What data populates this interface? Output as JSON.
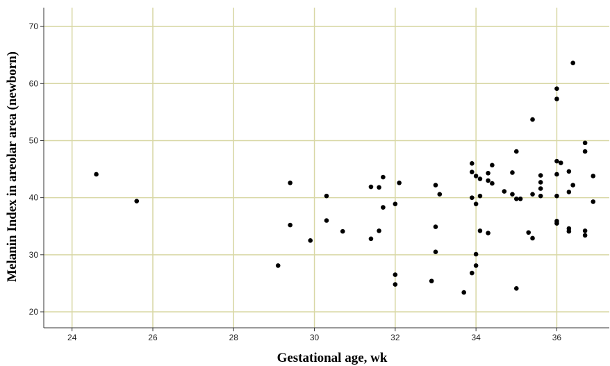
{
  "chart_data": {
    "type": "scatter",
    "title": "",
    "xlabel": "Gestational age, wk",
    "ylabel": "Melanin Index in areolar area (newborn)",
    "xlim": [
      23.3,
      37.3
    ],
    "ylim": [
      17.2,
      73.3
    ],
    "xticks": [
      24,
      26,
      28,
      30,
      32,
      34,
      36
    ],
    "yticks": [
      20,
      30,
      40,
      50,
      60,
      70
    ],
    "grid": true,
    "legend": "none",
    "colors": {
      "point": "#000000",
      "grid": "#d8d7a4",
      "axis": "#333333",
      "background": "#ffffff"
    },
    "points": [
      {
        "x": 24.6,
        "y": 44.1
      },
      {
        "x": 25.6,
        "y": 39.4
      },
      {
        "x": 29.1,
        "y": 28.1
      },
      {
        "x": 29.4,
        "y": 42.6
      },
      {
        "x": 29.4,
        "y": 35.2
      },
      {
        "x": 29.9,
        "y": 32.5
      },
      {
        "x": 30.3,
        "y": 40.3
      },
      {
        "x": 30.3,
        "y": 36.0
      },
      {
        "x": 30.7,
        "y": 34.1
      },
      {
        "x": 31.4,
        "y": 41.9
      },
      {
        "x": 31.4,
        "y": 32.8
      },
      {
        "x": 31.6,
        "y": 41.8
      },
      {
        "x": 31.6,
        "y": 34.2
      },
      {
        "x": 31.7,
        "y": 43.6
      },
      {
        "x": 31.7,
        "y": 38.3
      },
      {
        "x": 32.0,
        "y": 38.9
      },
      {
        "x": 32.1,
        "y": 42.6
      },
      {
        "x": 32.0,
        "y": 26.5
      },
      {
        "x": 32.0,
        "y": 24.8
      },
      {
        "x": 32.9,
        "y": 25.4
      },
      {
        "x": 33.0,
        "y": 42.2
      },
      {
        "x": 33.1,
        "y": 40.6
      },
      {
        "x": 33.0,
        "y": 34.9
      },
      {
        "x": 33.0,
        "y": 30.5
      },
      {
        "x": 33.7,
        "y": 23.4
      },
      {
        "x": 33.9,
        "y": 46.0
      },
      {
        "x": 33.9,
        "y": 44.5
      },
      {
        "x": 34.0,
        "y": 43.8
      },
      {
        "x": 33.9,
        "y": 40.0
      },
      {
        "x": 34.0,
        "y": 38.9
      },
      {
        "x": 34.1,
        "y": 43.3
      },
      {
        "x": 34.1,
        "y": 40.3
      },
      {
        "x": 34.1,
        "y": 34.2
      },
      {
        "x": 34.0,
        "y": 30.1
      },
      {
        "x": 34.0,
        "y": 28.1
      },
      {
        "x": 33.9,
        "y": 26.8
      },
      {
        "x": 34.3,
        "y": 44.3
      },
      {
        "x": 34.3,
        "y": 43.0
      },
      {
        "x": 34.4,
        "y": 45.7
      },
      {
        "x": 34.4,
        "y": 42.5
      },
      {
        "x": 34.3,
        "y": 33.8
      },
      {
        "x": 34.7,
        "y": 41.1
      },
      {
        "x": 34.9,
        "y": 44.4
      },
      {
        "x": 34.9,
        "y": 40.6
      },
      {
        "x": 35.0,
        "y": 48.1
      },
      {
        "x": 35.0,
        "y": 39.8
      },
      {
        "x": 35.1,
        "y": 39.8
      },
      {
        "x": 35.0,
        "y": 24.1
      },
      {
        "x": 35.3,
        "y": 33.9
      },
      {
        "x": 35.4,
        "y": 53.7
      },
      {
        "x": 35.4,
        "y": 40.6
      },
      {
        "x": 35.4,
        "y": 32.9
      },
      {
        "x": 35.6,
        "y": 43.9
      },
      {
        "x": 35.6,
        "y": 42.7
      },
      {
        "x": 35.6,
        "y": 41.6
      },
      {
        "x": 35.6,
        "y": 40.3
      },
      {
        "x": 36.0,
        "y": 59.1
      },
      {
        "x": 36.0,
        "y": 57.3
      },
      {
        "x": 36.0,
        "y": 46.4
      },
      {
        "x": 36.1,
        "y": 46.1
      },
      {
        "x": 36.0,
        "y": 44.1
      },
      {
        "x": 36.0,
        "y": 40.3
      },
      {
        "x": 36.0,
        "y": 35.9
      },
      {
        "x": 36.0,
        "y": 35.5
      },
      {
        "x": 36.3,
        "y": 44.6
      },
      {
        "x": 36.3,
        "y": 41.0
      },
      {
        "x": 36.3,
        "y": 34.6
      },
      {
        "x": 36.3,
        "y": 34.1
      },
      {
        "x": 36.4,
        "y": 63.6
      },
      {
        "x": 36.4,
        "y": 42.2
      },
      {
        "x": 36.7,
        "y": 49.6
      },
      {
        "x": 36.7,
        "y": 48.1
      },
      {
        "x": 36.7,
        "y": 34.2
      },
      {
        "x": 36.7,
        "y": 33.4
      },
      {
        "x": 36.9,
        "y": 43.8
      },
      {
        "x": 36.9,
        "y": 39.3
      }
    ]
  }
}
